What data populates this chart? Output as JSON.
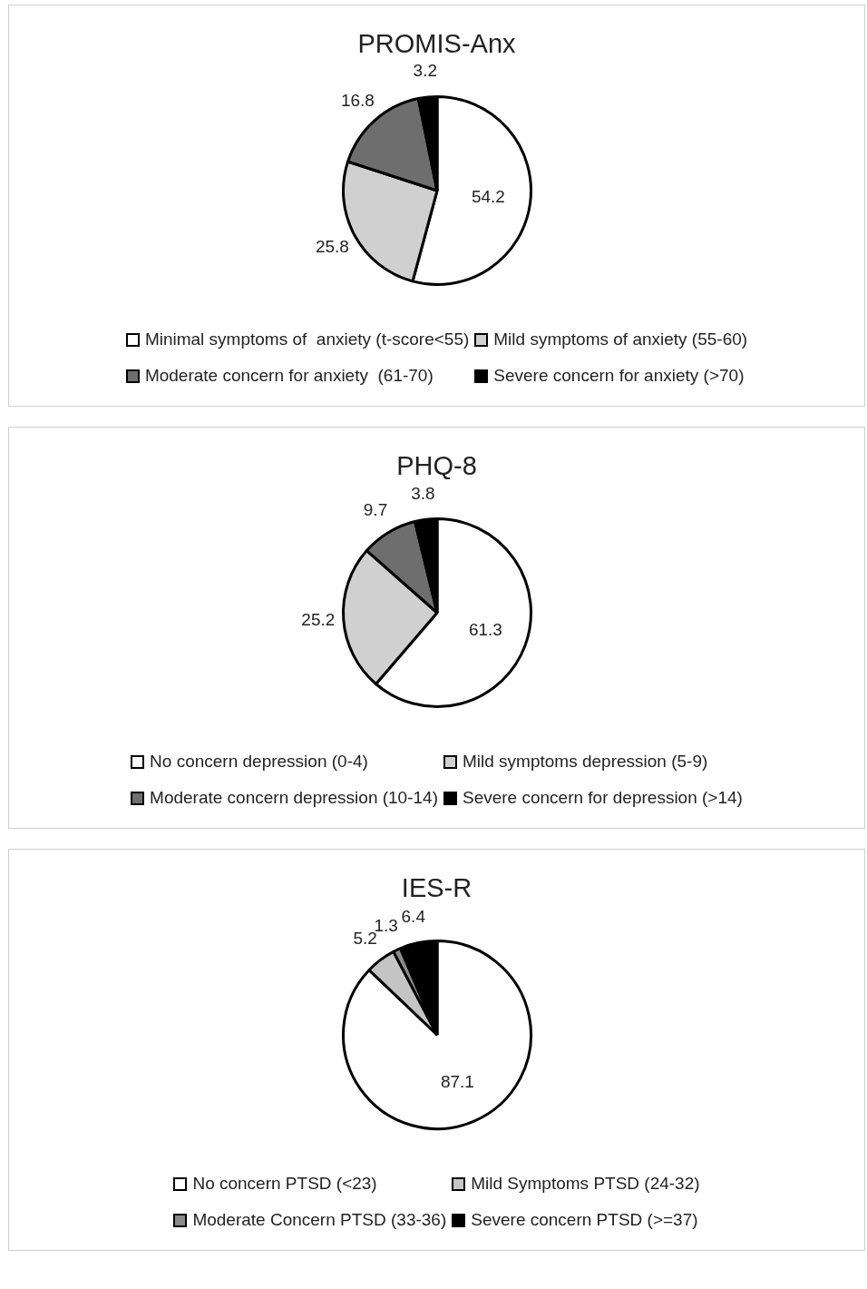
{
  "chart_data": [
    {
      "type": "pie",
      "title": "PROMIS-Anx",
      "categories": [
        "Minimal symptoms of  anxiety (t-score<55)",
        "Mild symptoms of anxiety (55-60)",
        "Moderate concern for anxiety  (61-70)",
        "Severe concern for anxiety (>70)"
      ],
      "values": [
        54.2,
        25.8,
        16.8,
        3.2
      ],
      "colors": [
        "#ffffff",
        "#d0d0d0",
        "#6e6e6e",
        "#000000"
      ],
      "data_labels": true,
      "legend": "bottom"
    },
    {
      "type": "pie",
      "title": "PHQ-8",
      "categories": [
        "No concern depression (0-4)",
        "Mild symptoms depression (5-9)",
        "Moderate concern depression (10-14)",
        "Severe concern for depression (>14)"
      ],
      "values": [
        61.3,
        25.2,
        9.7,
        3.8
      ],
      "colors": [
        "#ffffff",
        "#d0d0d0",
        "#6e6e6e",
        "#000000"
      ],
      "data_labels": true,
      "legend": "bottom"
    },
    {
      "type": "pie",
      "title": "IES-R",
      "categories": [
        "No concern PTSD (<23)",
        "Mild Symptoms PTSD (24-32)",
        "Moderate Concern PTSD (33-36)",
        "Severe concern PTSD (>=37)"
      ],
      "values": [
        87.1,
        5.2,
        1.3,
        6.4
      ],
      "colors": [
        "#ffffff",
        "#c4c4c4",
        "#8a8a8a",
        "#000000"
      ],
      "data_labels": true,
      "legend": "bottom"
    }
  ]
}
